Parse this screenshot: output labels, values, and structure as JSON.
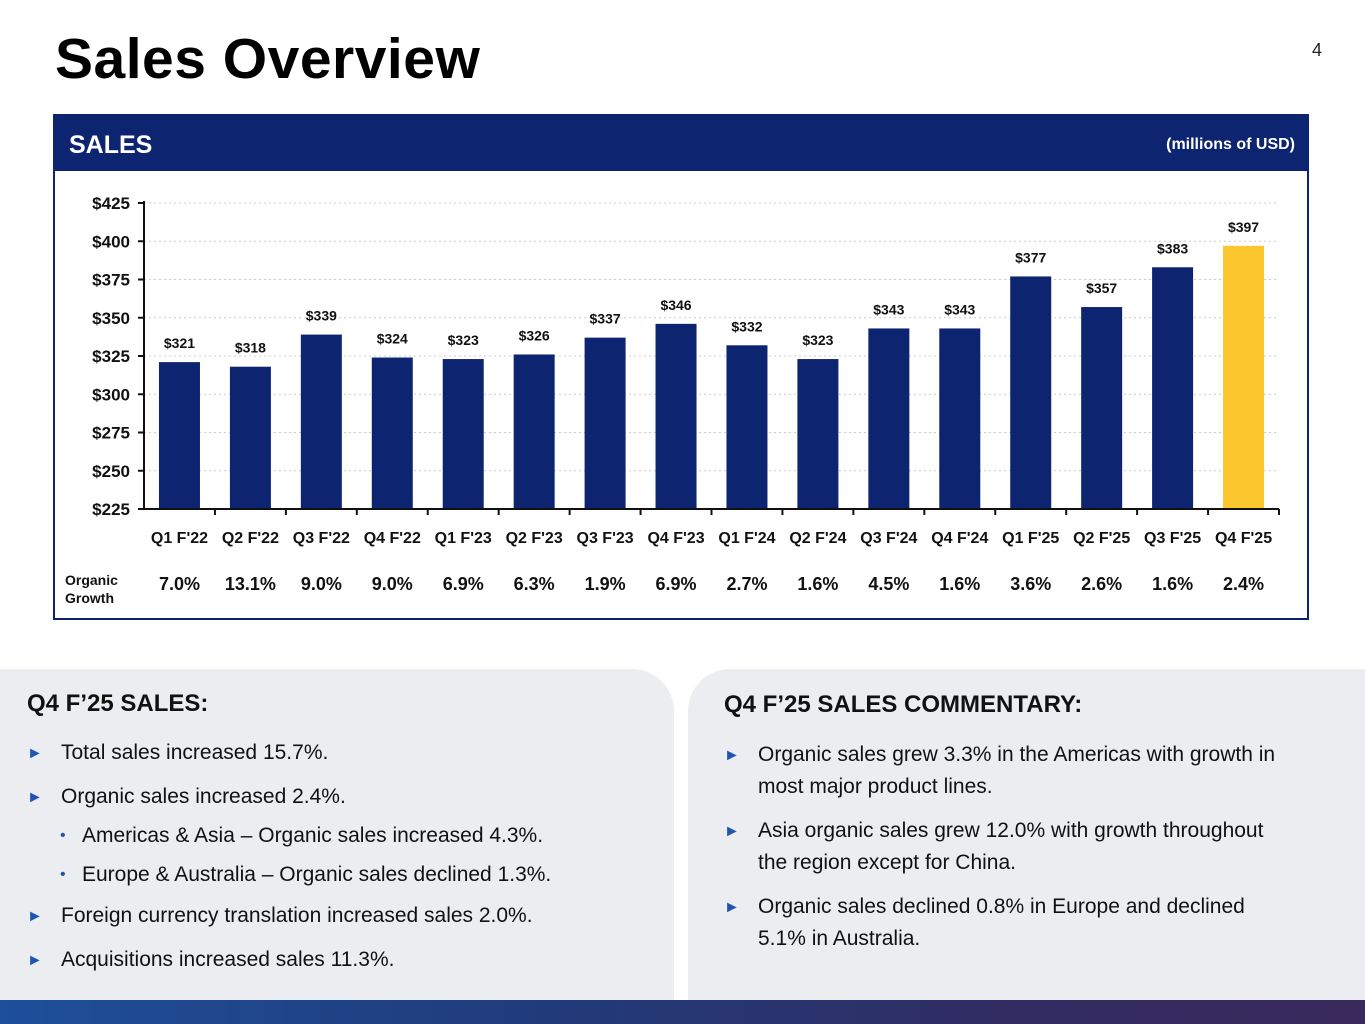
{
  "page": {
    "title": "Sales Overview",
    "page_number": "4"
  },
  "chart_panel": {
    "title": "SALES",
    "unit_note": "(millions of USD)",
    "organic_growth_label": "Organic Growth"
  },
  "chart_data": {
    "type": "bar",
    "title": "SALES",
    "subtitle": "(millions of USD)",
    "xlabel": "",
    "ylabel": "",
    "ylim": [
      225,
      425
    ],
    "yticks": [
      225,
      250,
      275,
      300,
      325,
      350,
      375,
      400,
      425
    ],
    "ytick_labels": [
      "$225",
      "$250",
      "$275",
      "$300",
      "$325",
      "$350",
      "$375",
      "$400",
      "$425"
    ],
    "grid": true,
    "categories": [
      "Q1 F'22",
      "Q2 F'22",
      "Q3 F'22",
      "Q4 F'22",
      "Q1 F'23",
      "Q2 F'23",
      "Q3 F'23",
      "Q4 F'23",
      "Q1 F'24",
      "Q2 F'24",
      "Q3 F'24",
      "Q4 F'24",
      "Q1 F'25",
      "Q2 F'25",
      "Q3 F'25",
      "Q4 F'25"
    ],
    "values": [
      321,
      318,
      339,
      324,
      323,
      326,
      337,
      346,
      332,
      323,
      343,
      343,
      377,
      357,
      383,
      397
    ],
    "value_labels": [
      "$321",
      "$318",
      "$339",
      "$324",
      "$323",
      "$326",
      "$337",
      "$346",
      "$332",
      "$323",
      "$343",
      "$343",
      "$377",
      "$357",
      "$383",
      "$397"
    ],
    "organic_growth": [
      "7.0%",
      "13.1%",
      "9.0%",
      "9.0%",
      "6.9%",
      "6.3%",
      "1.9%",
      "6.9%",
      "2.7%",
      "1.6%",
      "4.5%",
      "1.6%",
      "3.6%",
      "2.6%",
      "1.6%",
      "2.4%"
    ],
    "highlight_index": 15,
    "colors": {
      "bar": "#0d2470",
      "highlight": "#fcc72e",
      "axis": "#111111",
      "grid": "#cccccc"
    }
  },
  "left_panel": {
    "heading": "Q4 F’25 SALES:",
    "bullets": [
      "Total sales increased 15.7%.",
      "Organic sales increased 2.4%.",
      "Americas & Asia – Organic sales increased 4.3%.",
      "Europe & Australia – Organic sales declined 1.3%.",
      "Foreign currency translation increased sales 2.0%.",
      "Acquisitions increased sales 11.3%."
    ]
  },
  "right_panel": {
    "heading": "Q4 F’25 SALES COMMENTARY:",
    "bullets": [
      [
        "Organic sales grew 3.3% in the Americas with growth in",
        "most major product lines."
      ],
      [
        "Asia organic sales grew 12.0% with growth throughout",
        "the region except for China."
      ],
      [
        "Organic sales declined 0.8% in Europe and declined",
        "5.1% in Australia."
      ]
    ]
  },
  "icons": {
    "bullet": "triangle-right-icon",
    "sub_bullet": "dot-icon"
  }
}
